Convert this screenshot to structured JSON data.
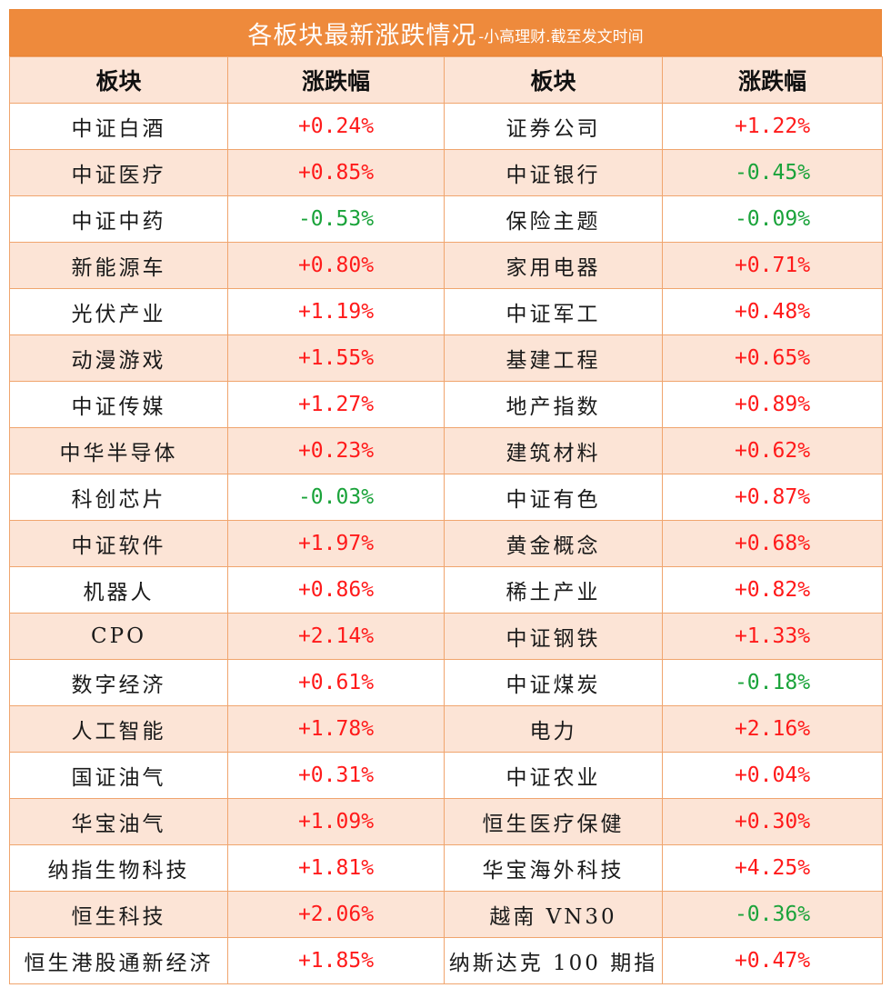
{
  "title": {
    "main": "各板块最新涨跌情况",
    "sub": "-小高理财.截至发文时间"
  },
  "colors": {
    "header_bg": "#ee8a3c",
    "stripe": "#fce4d6",
    "border": "#f0a56e",
    "up": "#ff1a1a",
    "down": "#1aa33a"
  },
  "columns": [
    "板块",
    "涨跌幅",
    "板块",
    "涨跌幅"
  ],
  "rows": [
    {
      "left_name": "中证白酒",
      "left_change": "+0.24%",
      "right_name": "证券公司",
      "right_change": "+1.22%"
    },
    {
      "left_name": "中证医疗",
      "left_change": "+0.85%",
      "right_name": "中证银行",
      "right_change": "-0.45%"
    },
    {
      "left_name": "中证中药",
      "left_change": "-0.53%",
      "right_name": "保险主题",
      "right_change": "-0.09%"
    },
    {
      "left_name": "新能源车",
      "left_change": "+0.80%",
      "right_name": "家用电器",
      "right_change": "+0.71%"
    },
    {
      "left_name": "光伏产业",
      "left_change": "+1.19%",
      "right_name": "中证军工",
      "right_change": "+0.48%"
    },
    {
      "left_name": "动漫游戏",
      "left_change": "+1.55%",
      "right_name": "基建工程",
      "right_change": "+0.65%"
    },
    {
      "left_name": "中证传媒",
      "left_change": "+1.27%",
      "right_name": "地产指数",
      "right_change": "+0.89%"
    },
    {
      "left_name": "中华半导体",
      "left_change": "+0.23%",
      "right_name": "建筑材料",
      "right_change": "+0.62%"
    },
    {
      "left_name": "科创芯片",
      "left_change": "-0.03%",
      "right_name": "中证有色",
      "right_change": "+0.87%"
    },
    {
      "left_name": "中证软件",
      "left_change": "+1.97%",
      "right_name": "黄金概念",
      "right_change": "+0.68%"
    },
    {
      "left_name": "机器人",
      "left_change": "+0.86%",
      "right_name": "稀土产业",
      "right_change": "+0.82%"
    },
    {
      "left_name": "CPO",
      "left_change": "+2.14%",
      "right_name": "中证钢铁",
      "right_change": "+1.33%"
    },
    {
      "left_name": "数字经济",
      "left_change": "+0.61%",
      "right_name": "中证煤炭",
      "right_change": "-0.18%"
    },
    {
      "left_name": "人工智能",
      "left_change": "+1.78%",
      "right_name": "电力",
      "right_change": "+2.16%"
    },
    {
      "left_name": "国证油气",
      "left_change": "+0.31%",
      "right_name": "中证农业",
      "right_change": "+0.04%"
    },
    {
      "left_name": "华宝油气",
      "left_change": "+1.09%",
      "right_name": "恒生医疗保健",
      "right_change": "+0.30%"
    },
    {
      "left_name": "纳指生物科技",
      "left_change": "+1.81%",
      "right_name": "华宝海外科技",
      "right_change": "+4.25%"
    },
    {
      "left_name": "恒生科技",
      "left_change": "+2.06%",
      "right_name": "越南 VN30",
      "right_change": "-0.36%"
    },
    {
      "left_name": "恒生港股通新经济",
      "left_change": "+1.85%",
      "right_name": "纳斯达克 100 期指",
      "right_change": "+0.47%"
    }
  ]
}
